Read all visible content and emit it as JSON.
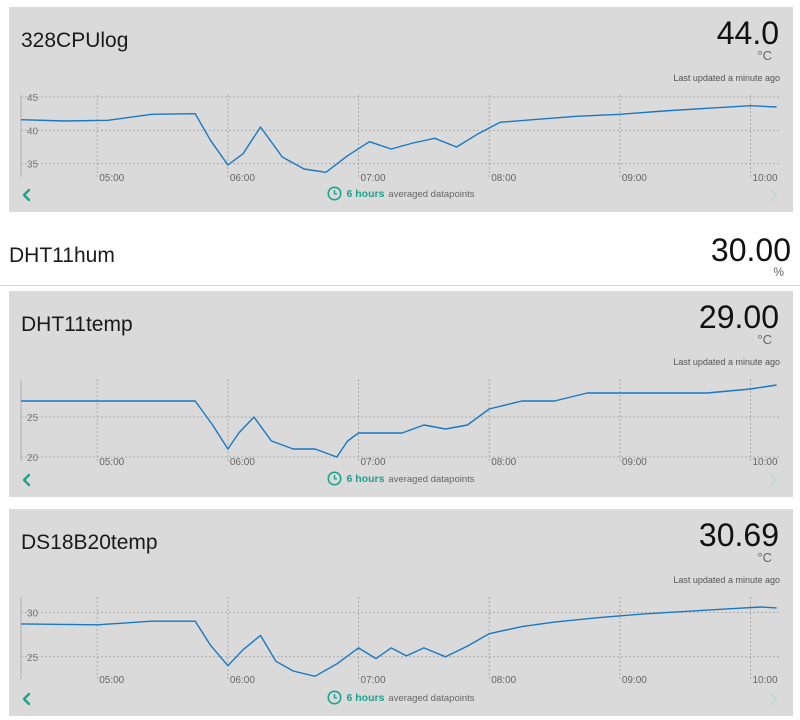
{
  "colors": {
    "card_bg": "#dadada",
    "line": "#1a78c2",
    "accent": "#1ea28b",
    "grid": "#aaaaaa"
  },
  "range_hours": "6 hours",
  "range_note": "averaged datapoints",
  "time_ticks": [
    "05:00",
    "06:00",
    "07:00",
    "08:00",
    "09:00",
    "10:00"
  ],
  "cards": {
    "cpu": {
      "title": "328CPUlog",
      "value": "44.0",
      "unit": "°C",
      "updated_prefix": "Last updated",
      "updated_ago": "a minute ago"
    },
    "temp": {
      "title": "DHT11temp",
      "value": "29.00",
      "unit": "°C",
      "updated_prefix": "Last updated",
      "updated_ago": "a minute ago"
    },
    "ds": {
      "title": "DS18B20temp",
      "value": "30.69",
      "unit": "°C",
      "updated_prefix": "Last updated",
      "updated_ago": "a minute ago"
    }
  },
  "plain": {
    "title": "DHT11hum",
    "value": "30.00",
    "unit": "%"
  },
  "chart_data": [
    {
      "type": "line",
      "title": "328CPUlog",
      "x_ticks": [
        "05:00",
        "06:00",
        "07:00",
        "08:00",
        "09:00",
        "10:00"
      ],
      "x": [
        "04:25",
        "04:45",
        "05:05",
        "05:25",
        "05:45",
        "05:52",
        "06:00",
        "06:07",
        "06:15",
        "06:25",
        "06:35",
        "06:45",
        "06:55",
        "07:05",
        "07:15",
        "07:25",
        "07:35",
        "07:45",
        "07:55",
        "08:05",
        "08:20",
        "08:40",
        "09:00",
        "09:20",
        "09:40",
        "10:00",
        "10:12"
      ],
      "values": [
        41.6,
        41.4,
        41.5,
        42.4,
        42.5,
        38.5,
        34.8,
        36.5,
        40.5,
        36.0,
        34.2,
        33.7,
        36.2,
        38.3,
        37.2,
        38.1,
        38.8,
        37.5,
        39.5,
        41.2,
        41.6,
        42.1,
        42.4,
        42.9,
        43.3,
        43.7,
        43.5
      ],
      "yticks": [
        35,
        40,
        45
      ],
      "ylim": [
        33,
        45
      ]
    },
    {
      "type": "line",
      "title": "DHT11temp",
      "x_ticks": [
        "05:00",
        "06:00",
        "07:00",
        "08:00",
        "09:00",
        "10:00"
      ],
      "x": [
        "04:25",
        "05:00",
        "05:30",
        "05:45",
        "05:53",
        "06:00",
        "06:05",
        "06:12",
        "06:20",
        "06:30",
        "06:40",
        "06:50",
        "06:55",
        "07:00",
        "07:10",
        "07:20",
        "07:30",
        "07:40",
        "07:50",
        "08:00",
        "08:15",
        "08:30",
        "08:45",
        "09:00",
        "09:20",
        "09:40",
        "10:00",
        "10:12"
      ],
      "values": [
        27,
        27,
        27,
        27,
        24,
        21,
        23,
        25,
        22,
        21,
        21,
        20,
        22,
        23,
        23,
        23,
        24,
        23.5,
        24,
        26,
        27,
        27,
        28,
        28,
        28,
        28,
        28.5,
        29
      ],
      "yticks": [
        20,
        25
      ],
      "ylim": [
        19.5,
        29.5
      ]
    },
    {
      "type": "line",
      "title": "DS18B20temp",
      "x_ticks": [
        "05:00",
        "06:00",
        "07:00",
        "08:00",
        "09:00",
        "10:00"
      ],
      "x": [
        "04:25",
        "05:00",
        "05:25",
        "05:45",
        "05:52",
        "06:00",
        "06:07",
        "06:15",
        "06:22",
        "06:30",
        "06:40",
        "06:50",
        "07:00",
        "07:08",
        "07:15",
        "07:22",
        "07:30",
        "07:40",
        "07:50",
        "08:00",
        "08:15",
        "08:30",
        "08:50",
        "09:10",
        "09:30",
        "09:50",
        "10:05",
        "10:12"
      ],
      "values": [
        28.7,
        28.6,
        29.0,
        29.0,
        26.3,
        24.0,
        25.8,
        27.4,
        24.5,
        23.4,
        22.8,
        24.2,
        26.0,
        24.8,
        26.0,
        25.1,
        26.0,
        25.0,
        26.2,
        27.6,
        28.4,
        28.9,
        29.4,
        29.8,
        30.1,
        30.4,
        30.6,
        30.5
      ],
      "yticks": [
        25,
        30
      ],
      "ylim": [
        22.5,
        31.5
      ]
    }
  ]
}
